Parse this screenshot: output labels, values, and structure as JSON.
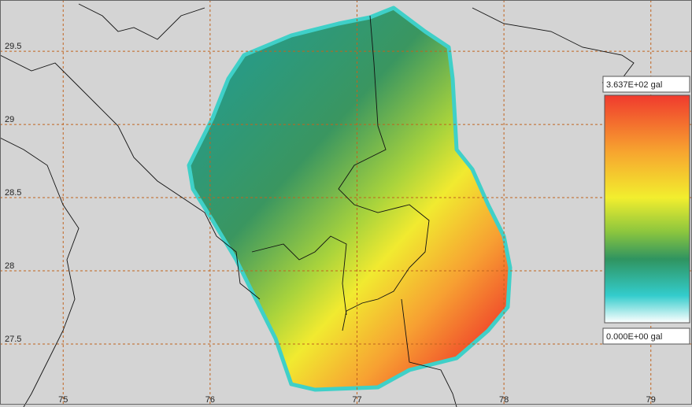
{
  "map": {
    "xlim": [
      74.57,
      79.28
    ],
    "ylim": [
      27.07,
      29.85
    ],
    "xticks": [
      75,
      76,
      77,
      78,
      79
    ],
    "yticks": [
      29.5,
      29,
      28.5,
      28,
      27.5
    ],
    "legend": {
      "max": {
        "value": 363.7,
        "label": "3.637E+02 gal"
      },
      "min": {
        "value": 0,
        "label": "0.000E+00 gal"
      }
    }
  }
}
